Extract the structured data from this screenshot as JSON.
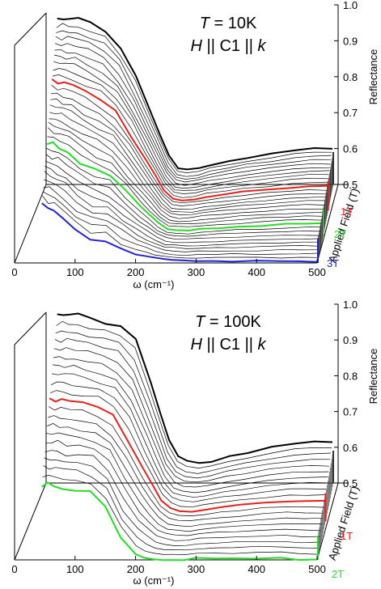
{
  "chart_data": [
    {
      "type": "line",
      "title_line1": "T = 10K",
      "title_T": "T",
      "title_rest": " = 10K",
      "title_line2": "H || C1 || k",
      "title2_H": "H",
      "title2_mid": " || C1 || ",
      "title2_k": "k",
      "xlabel": "ω (cm⁻¹)",
      "ylabel": "Reflectance",
      "zlabel": "Applied Field (T)",
      "xlim": [
        0,
        500
      ],
      "ylim": [
        0.5,
        1.0
      ],
      "xticks": [
        "0",
        "100",
        "200",
        "300",
        "400",
        "500"
      ],
      "yticks": [
        "0.5",
        "0.6",
        "0.7",
        "0.8",
        "0.9",
        "1.0"
      ],
      "field_labels": [
        {
          "label": "1T",
          "color": "#e8201a"
        },
        {
          "label": "2T",
          "color": "#22dd22"
        },
        {
          "label": "3T",
          "color": "#2222dd"
        }
      ],
      "num_curves": 31,
      "highlight": [
        {
          "index": 0,
          "color": "#000000",
          "field": "0T"
        },
        {
          "index": 10,
          "color": "#e8201a",
          "field": "1T"
        },
        {
          "index": 20,
          "color": "#22dd22",
          "field": "2T"
        },
        {
          "index": 30,
          "color": "#2222dd",
          "field": "3T"
        }
      ],
      "base_curve": {
        "x": [
          45,
          55,
          65,
          80,
          100,
          125,
          150,
          175,
          200,
          215,
          230,
          245,
          260,
          280,
          300,
          330,
          360,
          400,
          440,
          470,
          500
        ],
        "y": [
          0.96,
          0.96,
          0.96,
          0.96,
          0.95,
          0.93,
          0.88,
          0.8,
          0.7,
          0.64,
          0.58,
          0.545,
          0.54,
          0.545,
          0.555,
          0.565,
          0.575,
          0.585,
          0.595,
          0.6,
          0.6
        ]
      },
      "last_curve": {
        "x": [
          45,
          55,
          65,
          80,
          100,
          125,
          150,
          175,
          200,
          215,
          230,
          245,
          260,
          280,
          300,
          330,
          360,
          400,
          440,
          470,
          500
        ],
        "y": [
          0.665,
          0.655,
          0.645,
          0.625,
          0.59,
          0.565,
          0.565,
          0.54,
          0.525,
          0.52,
          0.515,
          0.51,
          0.508,
          0.505,
          0.505,
          0.505,
          0.505,
          0.505,
          0.505,
          0.505,
          0.505
        ]
      },
      "colors": {
        "bar_colors": [
          "#e8201a",
          "#22dd22",
          "#2222dd"
        ]
      }
    },
    {
      "type": "line",
      "title_line1": "T = 100K",
      "title_T": "T",
      "title_rest": " = 100K",
      "title_line2": "H || C1 || k",
      "title2_H": "H",
      "title2_mid": " || C1 || ",
      "title2_k": "k",
      "xlabel": "ω (cm⁻¹)",
      "ylabel": "Reflectance",
      "zlabel": "Applied Field (T)",
      "xlim": [
        0,
        500
      ],
      "ylim": [
        0.5,
        1.0
      ],
      "xticks": [
        "0",
        "100",
        "200",
        "300",
        "400",
        "500"
      ],
      "yticks": [
        "0.5",
        "0.6",
        "0.7",
        "0.8",
        "0.9",
        "1.0"
      ],
      "field_labels": [
        {
          "label": "1T",
          "color": "#e8201a"
        },
        {
          "label": "2T",
          "color": "#22dd22"
        }
      ],
      "num_curves": 21,
      "highlight": [
        {
          "index": 0,
          "color": "#000000",
          "field": "0T"
        },
        {
          "index": 10,
          "color": "#e8201a",
          "field": "1T"
        },
        {
          "index": 20,
          "color": "#22dd22",
          "field": "2T"
        }
      ],
      "base_curve": {
        "x": [
          45,
          55,
          65,
          80,
          100,
          125,
          150,
          175,
          200,
          215,
          230,
          245,
          260,
          280,
          300,
          330,
          360,
          400,
          440,
          470,
          500
        ],
        "y": [
          0.97,
          0.97,
          0.97,
          0.97,
          0.96,
          0.95,
          0.94,
          0.9,
          0.78,
          0.7,
          0.62,
          0.575,
          0.56,
          0.555,
          0.56,
          0.575,
          0.585,
          0.6,
          0.61,
          0.615,
          0.615
        ]
      },
      "last_curve": {
        "x": [
          45,
          55,
          65,
          80,
          100,
          125,
          150,
          175,
          200,
          215,
          230,
          245,
          260,
          280,
          300,
          330,
          360,
          400,
          440,
          470,
          500
        ],
        "y": [
          0.71,
          0.71,
          0.71,
          0.7,
          0.7,
          0.69,
          0.65,
          0.56,
          0.515,
          0.505,
          0.5,
          0.5,
          0.5,
          0.5,
          0.505,
          0.505,
          0.505,
          0.505,
          0.505,
          0.5,
          0.5
        ]
      },
      "colors": {
        "bar_colors": [
          "#e8201a",
          "#22dd22"
        ]
      }
    }
  ]
}
